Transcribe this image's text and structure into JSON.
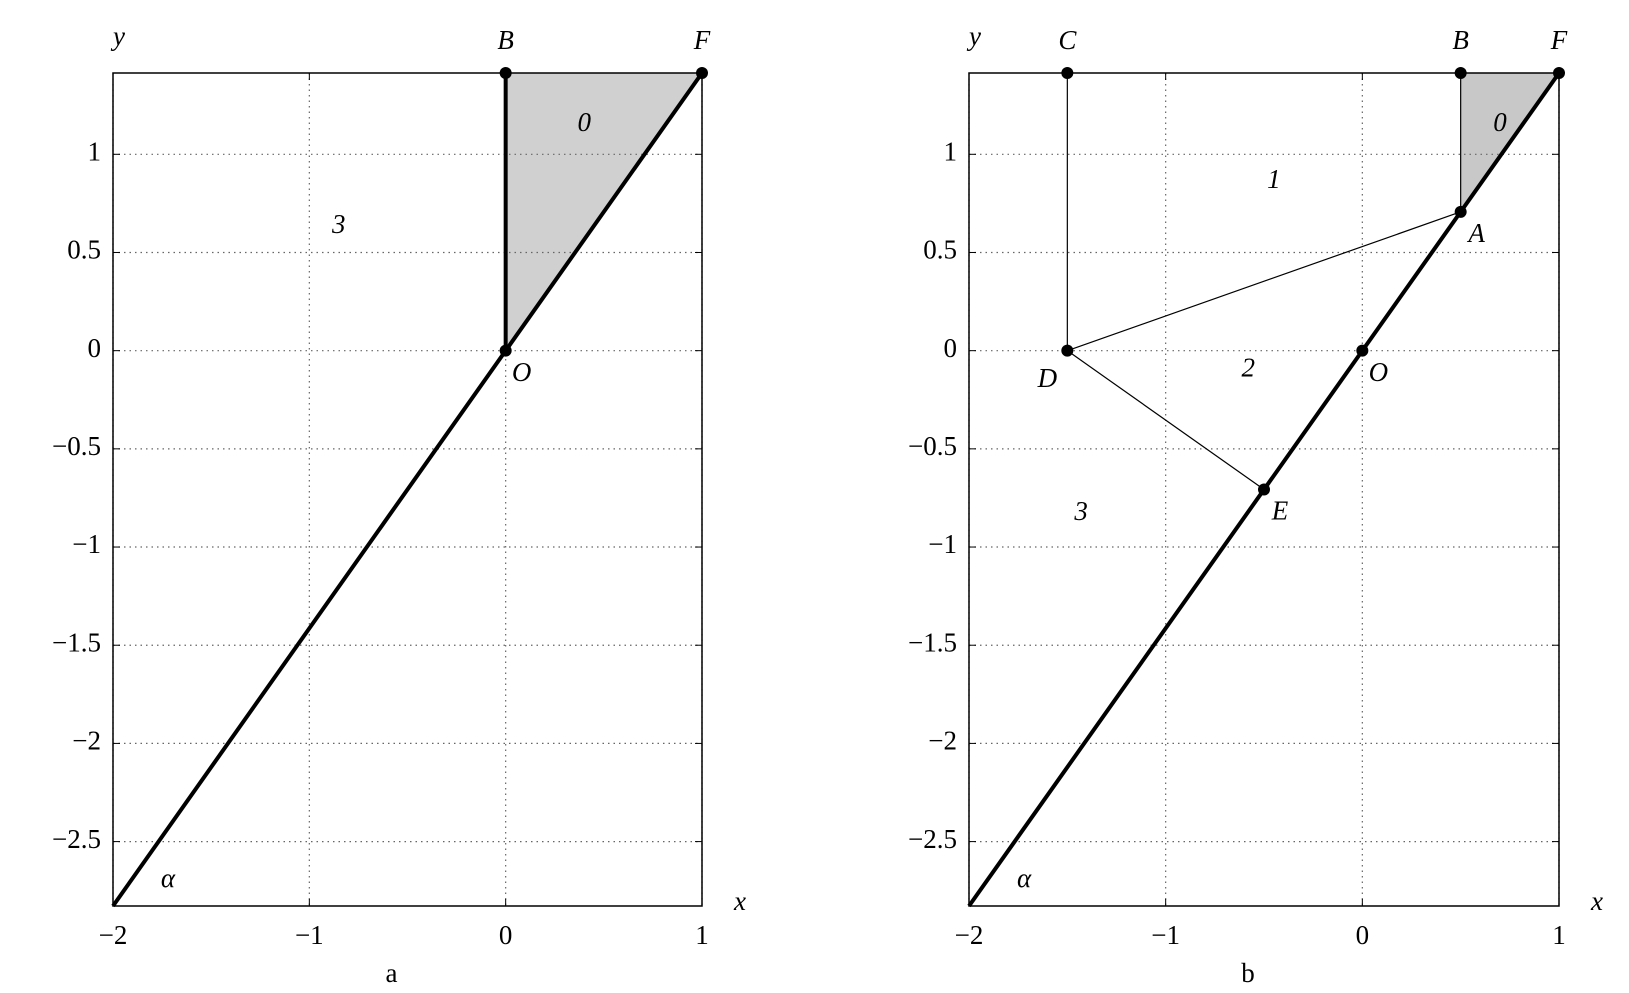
{
  "chart_data": [
    {
      "type": "geometry",
      "caption": "a",
      "xlabel": "x",
      "ylabel": "y",
      "xlim": [
        -2,
        1
      ],
      "ylim": [
        -2.828,
        1.414
      ],
      "xticks": [
        {
          "value": -2,
          "label": "−2"
        },
        {
          "value": -1,
          "label": "−1"
        },
        0,
        1
      ],
      "yticks": [
        {
          "value": -2.5,
          "label": "−2.5"
        },
        {
          "value": -2,
          "label": "−2"
        },
        {
          "value": -1.5,
          "label": "−1.5"
        },
        {
          "value": -1,
          "label": "−1"
        },
        {
          "value": -0.5,
          "label": "−0.5"
        },
        0,
        0.5,
        1
      ],
      "grid": true,
      "shaded": {
        "color": "#d0d0d0",
        "x": [
          0,
          0,
          1
        ],
        "y": [
          1.414,
          0,
          1.414
        ]
      },
      "lines": [
        {
          "style": "thick",
          "x": [
            -2,
            1
          ],
          "y": [
            -2.828,
            1.414
          ]
        },
        {
          "style": "thick",
          "x": [
            0,
            0
          ],
          "y": [
            0,
            1.414
          ]
        }
      ],
      "points": [
        {
          "label": "B",
          "x": 0,
          "y": 1.414,
          "label_pos": "above"
        },
        {
          "label": "F",
          "x": 1,
          "y": 1.414,
          "label_pos": "above"
        },
        {
          "label": "O",
          "x": 0,
          "y": 0,
          "label_pos": "below-right"
        }
      ],
      "annotations": [
        {
          "text": "0",
          "x": 0.4,
          "y": 1.15
        },
        {
          "text": "3",
          "x": -0.85,
          "y": 0.63
        },
        {
          "text": "α",
          "x": -1.72,
          "y": -2.7
        }
      ]
    },
    {
      "type": "geometry",
      "caption": "b",
      "xlabel": "x",
      "ylabel": "y",
      "xlim": [
        -2,
        1
      ],
      "ylim": [
        -2.828,
        1.414
      ],
      "xticks": [
        {
          "value": -2,
          "label": "−2"
        },
        {
          "value": -1,
          "label": "−1"
        },
        0,
        1
      ],
      "yticks": [
        {
          "value": -2.5,
          "label": "−2.5"
        },
        {
          "value": -2,
          "label": "−2"
        },
        {
          "value": -1.5,
          "label": "−1.5"
        },
        {
          "value": -1,
          "label": "−1"
        },
        {
          "value": -0.5,
          "label": "−0.5"
        },
        0,
        0.5,
        1
      ],
      "grid": true,
      "shaded": {
        "color": "#c8c8c8",
        "x": [
          0.5,
          0.5,
          1
        ],
        "y": [
          1.414,
          0.707,
          1.414
        ]
      },
      "lines": [
        {
          "style": "thick",
          "x": [
            -2,
            1
          ],
          "y": [
            -2.828,
            1.414
          ]
        },
        {
          "style": "thin",
          "x": [
            -1.5,
            -1.5
          ],
          "y": [
            1.414,
            0
          ]
        },
        {
          "style": "thin",
          "x": [
            -1.5,
            0.5
          ],
          "y": [
            0,
            0.707
          ]
        },
        {
          "style": "thin",
          "x": [
            -1.5,
            -0.5
          ],
          "y": [
            0,
            -0.707
          ]
        },
        {
          "style": "thin",
          "x": [
            0.5,
            0.5
          ],
          "y": [
            1.414,
            0.707
          ]
        }
      ],
      "points": [
        {
          "label": "C",
          "x": -1.5,
          "y": 1.414,
          "label_pos": "above"
        },
        {
          "label": "B",
          "x": 0.5,
          "y": 1.414,
          "label_pos": "above"
        },
        {
          "label": "F",
          "x": 1,
          "y": 1.414,
          "label_pos": "above"
        },
        {
          "label": "A",
          "x": 0.5,
          "y": 0.707,
          "label_pos": "below-right"
        },
        {
          "label": "D",
          "x": -1.5,
          "y": 0,
          "label_pos": "below-left"
        },
        {
          "label": "O",
          "x": 0,
          "y": 0,
          "label_pos": "below-right"
        },
        {
          "label": "E",
          "x": -0.5,
          "y": -0.707,
          "label_pos": "below-right"
        }
      ],
      "annotations": [
        {
          "text": "1",
          "x": -0.45,
          "y": 0.86
        },
        {
          "text": "2",
          "x": -0.58,
          "y": -0.1
        },
        {
          "text": "3",
          "x": -1.43,
          "y": -0.83
        },
        {
          "text": "0",
          "x": 0.7,
          "y": 1.15
        },
        {
          "text": "α",
          "x": -1.72,
          "y": -2.7
        }
      ]
    }
  ]
}
